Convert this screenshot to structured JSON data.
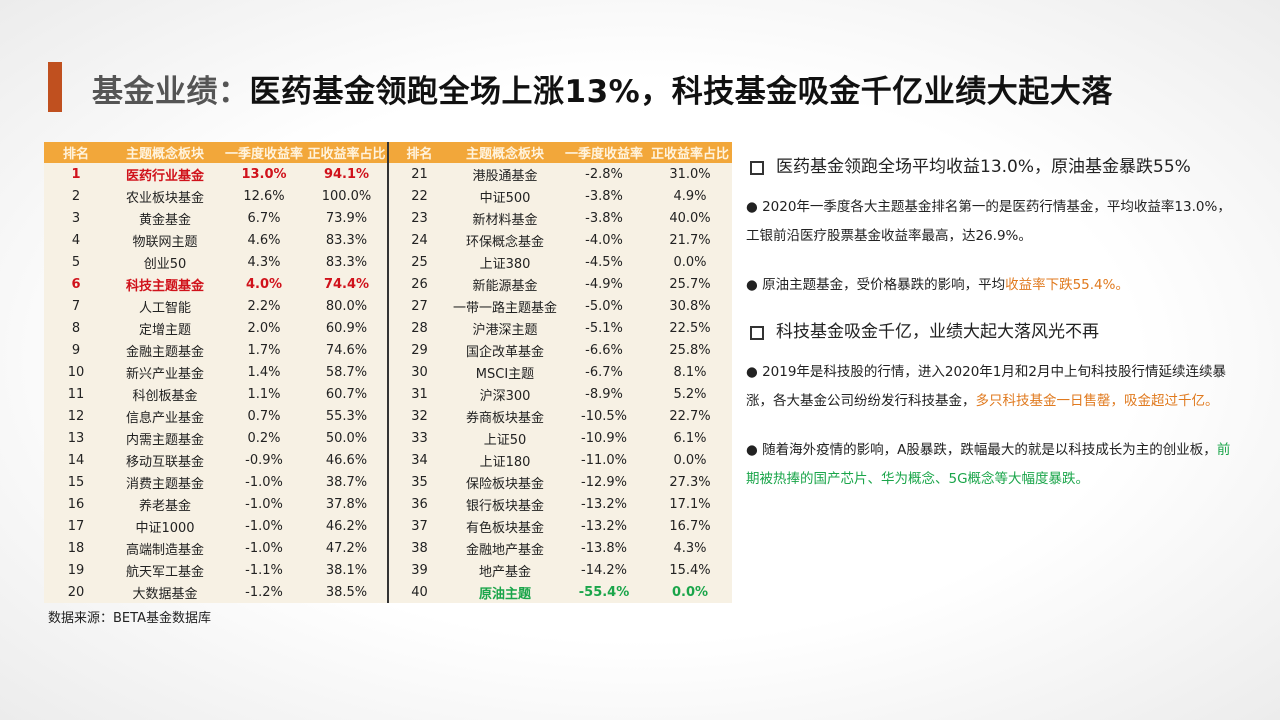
{
  "header": {
    "label": "基金业绩：",
    "text": "医药基金领跑全场上涨13%，科技基金吸金千亿业绩大起大落"
  },
  "table": {
    "headers": [
      "排名",
      "主题概念板块",
      "一季度收益率",
      "正收益率占比",
      "排名",
      "主题概念板块",
      "一季度收益率",
      "正收益率占比"
    ],
    "rows": [
      [
        "1",
        "医药行业基金",
        "13.0%",
        "94.1%",
        "21",
        "港股通基金",
        "-2.8%",
        "31.0%"
      ],
      [
        "2",
        "农业板块基金",
        "12.6%",
        "100.0%",
        "22",
        "中证500",
        "-3.8%",
        "4.9%"
      ],
      [
        "3",
        "黄金基金",
        "6.7%",
        "73.9%",
        "23",
        "新材料基金",
        "-3.8%",
        "40.0%"
      ],
      [
        "4",
        "物联网主题",
        "4.6%",
        "83.3%",
        "24",
        "环保概念基金",
        "-4.0%",
        "21.7%"
      ],
      [
        "5",
        "创业50",
        "4.3%",
        "83.3%",
        "25",
        "上证380",
        "-4.5%",
        "0.0%"
      ],
      [
        "6",
        "科技主题基金",
        "4.0%",
        "74.4%",
        "26",
        "新能源基金",
        "-4.9%",
        "25.7%"
      ],
      [
        "7",
        "人工智能",
        "2.2%",
        "80.0%",
        "27",
        "一带一路主题基金",
        "-5.0%",
        "30.8%"
      ],
      [
        "8",
        "定增主题",
        "2.0%",
        "60.9%",
        "28",
        "沪港深主题",
        "-5.1%",
        "22.5%"
      ],
      [
        "9",
        "金融主题基金",
        "1.7%",
        "74.6%",
        "29",
        "国企改革基金",
        "-6.6%",
        "25.8%"
      ],
      [
        "10",
        "新兴产业基金",
        "1.4%",
        "58.7%",
        "30",
        "MSCI主题",
        "-6.7%",
        "8.1%"
      ],
      [
        "11",
        "科创板基金",
        "1.1%",
        "60.7%",
        "31",
        "沪深300",
        "-8.9%",
        "5.2%"
      ],
      [
        "12",
        "信息产业基金",
        "0.7%",
        "55.3%",
        "32",
        "券商板块基金",
        "-10.5%",
        "22.7%"
      ],
      [
        "13",
        "内需主题基金",
        "0.2%",
        "50.0%",
        "33",
        "上证50",
        "-10.9%",
        "6.1%"
      ],
      [
        "14",
        "移动互联基金",
        "-0.9%",
        "46.6%",
        "34",
        "上证180",
        "-11.0%",
        "0.0%"
      ],
      [
        "15",
        "消费主题基金",
        "-1.0%",
        "38.7%",
        "35",
        "保险板块基金",
        "-12.9%",
        "27.3%"
      ],
      [
        "16",
        "养老基金",
        "-1.0%",
        "37.8%",
        "36",
        "银行板块基金",
        "-13.2%",
        "17.1%"
      ],
      [
        "17",
        "中证1000",
        "-1.0%",
        "46.2%",
        "37",
        "有色板块基金",
        "-13.2%",
        "16.7%"
      ],
      [
        "18",
        "高端制造基金",
        "-1.0%",
        "47.2%",
        "38",
        "金融地产基金",
        "-13.8%",
        "4.3%"
      ],
      [
        "19",
        "航天军工基金",
        "-1.1%",
        "38.1%",
        "39",
        "地产基金",
        "-14.2%",
        "15.4%"
      ],
      [
        "20",
        "大数据基金",
        "-1.2%",
        "38.5%",
        "40",
        "原油主题",
        "-55.4%",
        "0.0%"
      ]
    ]
  },
  "source": "数据来源：BETA基金数据库",
  "sections": [
    {
      "heading": "医药基金领跑全场平均收益13.0%，原油基金暴跌55%",
      "bullets": [
        {
          "text": "2020年一季度各大主题基金排名第一的是医药行情基金，平均收益率13.0%，工银前沿医疗股票基金收益率最高，达26.9%。"
        },
        {
          "text": "原油主题基金，受价格暴跌的影响，平均",
          "highlight": "收益率下跌55.4%。"
        }
      ]
    },
    {
      "heading": "科技基金吸金千亿，业绩大起大落风光不再",
      "bullets": [
        {
          "text": "2019年是科技股的行情，进入2020年1月和2月中上旬科技股行情延续连续暴涨，各大基金公司纷纷发行科技基金，",
          "highlight": "多只科技基金一日售罄，吸金超过千亿。"
        },
        {
          "text": "随着海外疫情的影响，A股暴跌，跌幅最大的就是以科技成长为主的创业板，",
          "highlight": "前期被热捧的国产芯片、华为概念、5G概念等大幅度暴跌。"
        }
      ]
    }
  ]
}
